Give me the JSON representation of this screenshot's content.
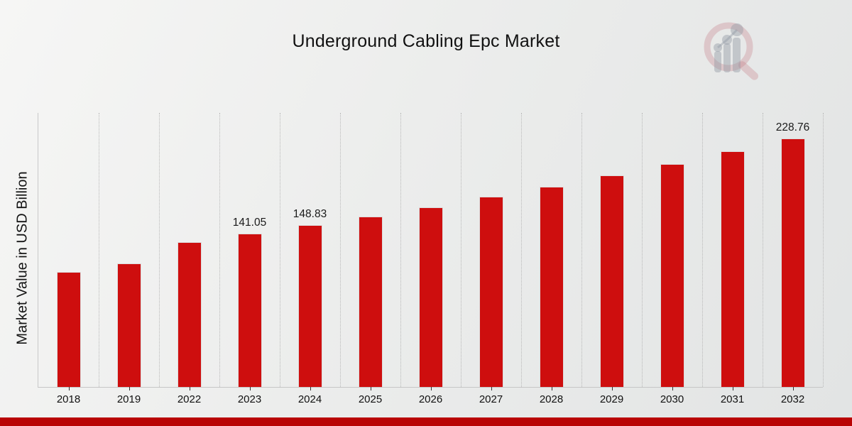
{
  "page": {
    "title": "Underground Cabling Epc Market",
    "y_axis_title": "Market Value in USD Billion",
    "logo_icon": "magnifier-bar-chart-watermark",
    "colors": {
      "bar": "#ce0e0e",
      "footer_accent": "#b90404",
      "background_top": "#f6f6f5",
      "background_bottom": "#e2e4e4",
      "gridline": "#b9b9b9",
      "axis_line": "#c9c9c9",
      "text": "#111111"
    }
  },
  "chart_data": {
    "type": "bar",
    "title": "Underground Cabling Epc Market",
    "xlabel": "",
    "ylabel": "Market Value in USD Billion",
    "categories": [
      "2018",
      "2019",
      "2022",
      "2023",
      "2024",
      "2025",
      "2026",
      "2027",
      "2028",
      "2029",
      "2030",
      "2031",
      "2032"
    ],
    "values": [
      105.7,
      113.7,
      133.6,
      141.05,
      148.83,
      157.05,
      165.7,
      174.9,
      184.5,
      194.7,
      205.5,
      216.9,
      228.76
    ],
    "bar_labels": [
      "",
      "",
      "",
      "141.05",
      "148.83",
      "",
      "",
      "",
      "",
      "",
      "",
      "",
      "228.76"
    ],
    "ylim": [
      0,
      252.3
    ],
    "grid": "vertical-dotted-category-boundaries",
    "legend": "none",
    "bar_color": "#ce0e0e",
    "units": "USD Billion"
  }
}
